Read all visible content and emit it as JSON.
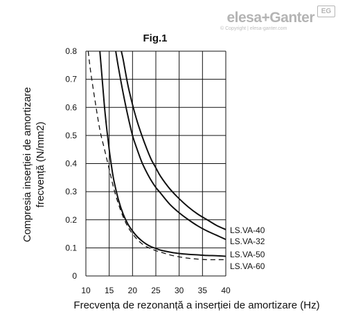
{
  "logo": {
    "text": "elesa+Ganter",
    "badge": "EG",
    "copyright": "© Copyright | elesa-ganter.com"
  },
  "chart_data": {
    "type": "line",
    "title": "Fig.1",
    "xlabel": "Frecvența de rezonanță a inserției de amortizare (Hz)",
    "ylabel_lines": [
      "Compresia inserției de amortizare",
      "frecvență (N/mm2)"
    ],
    "xlim": [
      10,
      40
    ],
    "ylim": [
      0,
      0.8
    ],
    "xticks": [
      10,
      15,
      20,
      25,
      30,
      35,
      40
    ],
    "yticks": [
      0,
      0.1,
      0.2,
      0.3,
      0.4,
      0.5,
      0.6,
      0.7,
      0.8
    ],
    "grid": true,
    "series": [
      {
        "name": "LS.VA-40",
        "style": "solid",
        "x": [
          17.6,
          18,
          19,
          20,
          21,
          22,
          23,
          24,
          25,
          26,
          28,
          30,
          32,
          34,
          36,
          38,
          40
        ],
        "y": [
          0.8,
          0.77,
          0.68,
          0.61,
          0.55,
          0.5,
          0.455,
          0.415,
          0.385,
          0.355,
          0.31,
          0.275,
          0.245,
          0.22,
          0.2,
          0.18,
          0.165
        ]
      },
      {
        "name": "LS.VA-32",
        "style": "solid",
        "x": [
          16.4,
          17,
          18,
          19,
          20,
          21,
          22,
          23,
          24,
          25,
          26,
          28,
          30,
          32,
          34,
          36,
          38,
          40
        ],
        "y": [
          0.8,
          0.74,
          0.65,
          0.57,
          0.5,
          0.45,
          0.405,
          0.37,
          0.34,
          0.315,
          0.295,
          0.255,
          0.225,
          0.2,
          0.178,
          0.16,
          0.145,
          0.13
        ]
      },
      {
        "name": "LS.VA-50",
        "style": "solid",
        "x": [
          13,
          13.5,
          14,
          14.5,
          15,
          15.5,
          16,
          17,
          18,
          19,
          20,
          21,
          22,
          23,
          24,
          25,
          26,
          28,
          30,
          32,
          34,
          36,
          38,
          40
        ],
        "y": [
          0.8,
          0.7,
          0.6,
          0.52,
          0.45,
          0.39,
          0.34,
          0.27,
          0.22,
          0.185,
          0.16,
          0.14,
          0.125,
          0.113,
          0.104,
          0.098,
          0.092,
          0.085,
          0.08,
          0.077,
          0.075,
          0.073,
          0.072,
          0.07
        ]
      },
      {
        "name": "LS.VA-60",
        "style": "dashed",
        "x": [
          10.5,
          11,
          12,
          13,
          14,
          15,
          16,
          17,
          18,
          19,
          20,
          21,
          22,
          23,
          24,
          25,
          26,
          28,
          30,
          32,
          34,
          36,
          38,
          40
        ],
        "y": [
          0.8,
          0.73,
          0.62,
          0.52,
          0.45,
          0.38,
          0.31,
          0.255,
          0.21,
          0.175,
          0.15,
          0.13,
          0.115,
          0.104,
          0.097,
          0.09,
          0.085,
          0.075,
          0.068,
          0.063,
          0.06,
          0.058,
          0.058,
          0.058
        ]
      }
    ],
    "legend_order": [
      "LS.VA-40",
      "LS.VA-32",
      "LS.VA-50",
      "LS.VA-60"
    ]
  }
}
